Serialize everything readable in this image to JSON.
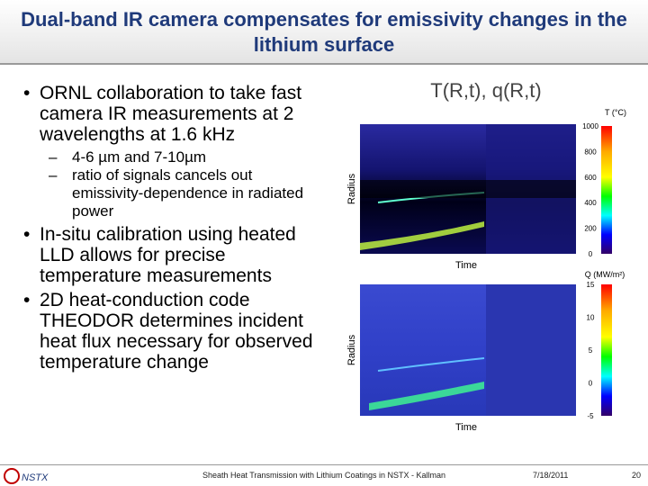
{
  "header": {
    "title": "Dual-band IR camera compensates for emissivity changes in the lithium surface"
  },
  "bullets": [
    {
      "text": "ORNL collaboration to take fast camera IR measurements at 2 wavelengths at 1.6 kHz",
      "sub": [
        "4-6 µm and 7-10µm",
        "ratio of signals cancels out emissivity-dependence in radiated power"
      ]
    },
    {
      "text": "In-situ calibration using heated LLD allows for precise temperature measurements",
      "sub": []
    },
    {
      "text": "2D heat-conduction code THEODOR determines incident heat flux necessary for observed temperature change",
      "sub": []
    }
  ],
  "figure": {
    "title": "T(R,t), q(R,t)",
    "panels": [
      {
        "ylabel": "Radius",
        "xlabel": "Time",
        "colorbar_label": "T (°C)",
        "colorbar_ticks": [
          1000,
          800,
          600,
          400,
          200,
          0
        ]
      },
      {
        "ylabel": "Radius",
        "xlabel": "Time",
        "colorbar_label": "Q (MW/m²)",
        "colorbar_ticks": [
          15,
          10,
          5,
          0,
          -5
        ]
      }
    ]
  },
  "footer": {
    "logo": "NSTX",
    "center": "Sheath Heat Transmission with Lithium Coatings in NSTX - Kallman",
    "date": "7/18/2011",
    "page": "20"
  }
}
